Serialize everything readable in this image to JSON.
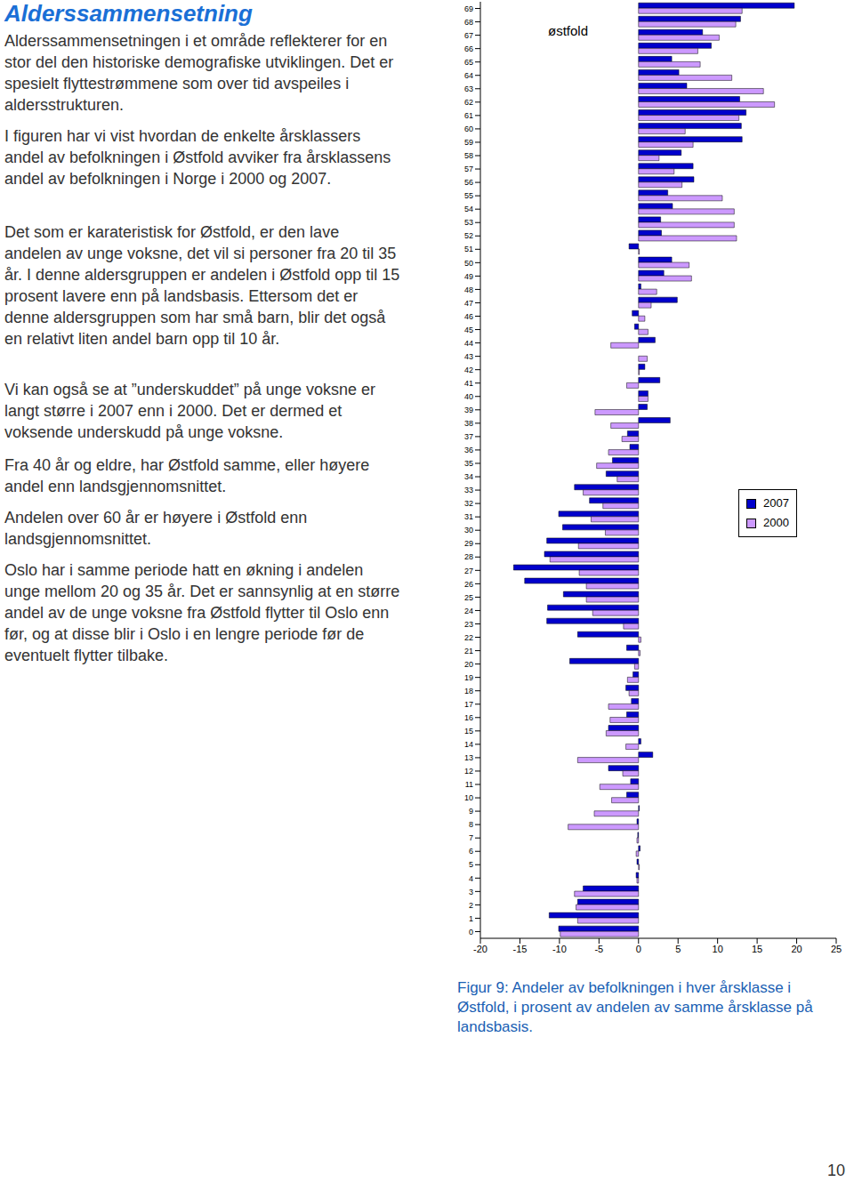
{
  "heading": "Alderssammensetning",
  "paragraphs": [
    "Alderssammensetningen i et område reflekterer for en stor del den historiske demografiske utviklingen. Det er spesielt flyttestrømmene som over tid avspeiles i aldersstrukturen.",
    "I figuren har vi vist hvordan de enkelte årsklassers andel av befolkningen i Østfold avviker fra årsklassens andel av befolkningen i Norge i 2000 og 2007.",
    "Det som er karateristisk for Østfold, er den lave andelen av unge voksne, det vil si personer fra 20 til 35 år. I denne aldersgruppen er andelen i Østfold opp til 15 prosent lavere enn på landsbasis. Ettersom det er denne aldersgruppen som har små barn, blir det også en relativt liten andel barn opp til 10 år.",
    "Vi kan også se at ”underskuddet” på unge voksne er langt større i 2007 enn i 2000. Det er dermed et voksende underskudd på unge voksne.",
    "Fra 40 år og eldre, har Østfold samme, eller høyere andel enn landsgjennomsnittet.",
    "Andelen over 60 år er høyere i Østfold enn landsgjennomsnittet.",
    "Oslo har i samme periode hatt en økning i andelen unge mellom 20 og 35 år. Det er sannsynlig at en større andel av de unge voksne fra Østfold flytter til Oslo enn før, og at disse blir i Oslo i en lengre periode før de eventuelt flytter tilbake."
  ],
  "chart_data": {
    "type": "bar",
    "orientation": "horizontal",
    "title": "østfold",
    "categories": [
      "0",
      "1",
      "2",
      "3",
      "4",
      "5",
      "6",
      "7",
      "8",
      "9",
      "10",
      "11",
      "12",
      "13",
      "14",
      "15",
      "16",
      "17",
      "18",
      "19",
      "20",
      "21",
      "22",
      "23",
      "24",
      "25",
      "26",
      "27",
      "28",
      "29",
      "30",
      "31",
      "32",
      "33",
      "34",
      "35",
      "36",
      "37",
      "38",
      "39",
      "40",
      "41",
      "42",
      "43",
      "44",
      "45",
      "46",
      "47",
      "48",
      "49",
      "50",
      "51",
      "52",
      "53",
      "54",
      "55",
      "56",
      "57",
      "58",
      "59",
      "60",
      "61",
      "62",
      "63",
      "64",
      "65",
      "66",
      "67",
      "68",
      "69"
    ],
    "series": [
      {
        "name": "2007",
        "color": "#0000cc",
        "values": [
          -10.1,
          -11.3,
          -7.7,
          -7.0,
          -0.3,
          -0.2,
          0.2,
          -0.1,
          -0.2,
          0.1,
          -1.5,
          -1.0,
          -3.8,
          1.8,
          0.3,
          -3.8,
          -1.5,
          -0.9,
          -1.6,
          -0.7,
          -8.7,
          -1.5,
          -7.7,
          -11.6,
          -11.5,
          -9.5,
          -14.4,
          -15.8,
          -11.9,
          -11.6,
          -9.6,
          -10.1,
          -6.2,
          -8.1,
          -4.1,
          -3.3,
          -1.1,
          -1.4,
          4.0,
          1.1,
          1.2,
          2.7,
          0.8,
          0.0,
          2.1,
          -0.5,
          -0.8,
          4.9,
          0.3,
          3.2,
          4.2,
          -1.2,
          2.9,
          2.8,
          4.3,
          3.7,
          7.0,
          6.9,
          5.4,
          13.1,
          13.0,
          13.6,
          12.8,
          6.1,
          5.1,
          4.2,
          9.2,
          8.1,
          12.9,
          19.7
        ]
      },
      {
        "name": "2000",
        "color": "#cc99ff",
        "values": [
          -9.9,
          -7.7,
          -7.9,
          -8.1,
          -0.2,
          0.1,
          -0.3,
          -0.2,
          -8.9,
          -5.6,
          -3.4,
          -4.9,
          -2.0,
          -7.7,
          -1.6,
          -4.1,
          -3.6,
          -3.8,
          -1.2,
          -1.4,
          -0.5,
          0.2,
          0.3,
          -1.9,
          -5.8,
          -6.6,
          -6.6,
          -7.5,
          -11.2,
          -7.6,
          -4.2,
          -6.0,
          -4.5,
          -7.0,
          -2.7,
          -5.3,
          -3.8,
          -2.1,
          -3.5,
          -5.5,
          1.2,
          -1.5,
          0.1,
          1.1,
          -3.5,
          1.2,
          0.8,
          1.6,
          2.3,
          6.7,
          6.4,
          0.1,
          12.4,
          12.1,
          12.1,
          10.6,
          5.5,
          4.5,
          2.6,
          6.9,
          5.9,
          12.7,
          17.2,
          15.8,
          11.8,
          7.8,
          7.5,
          10.2,
          12.3,
          13.1
        ]
      }
    ],
    "xlim": [
      -20,
      25
    ],
    "xticks": [
      -20,
      -15,
      -10,
      -5,
      0,
      5,
      10,
      15,
      20,
      25
    ],
    "legend": "right",
    "grid": false
  },
  "caption": "Figur 9: Andeler av befolkningen i hver årsklasse i Østfold, i prosent av andelen av samme årsklasse på landsbasis.",
  "page_number": "10"
}
